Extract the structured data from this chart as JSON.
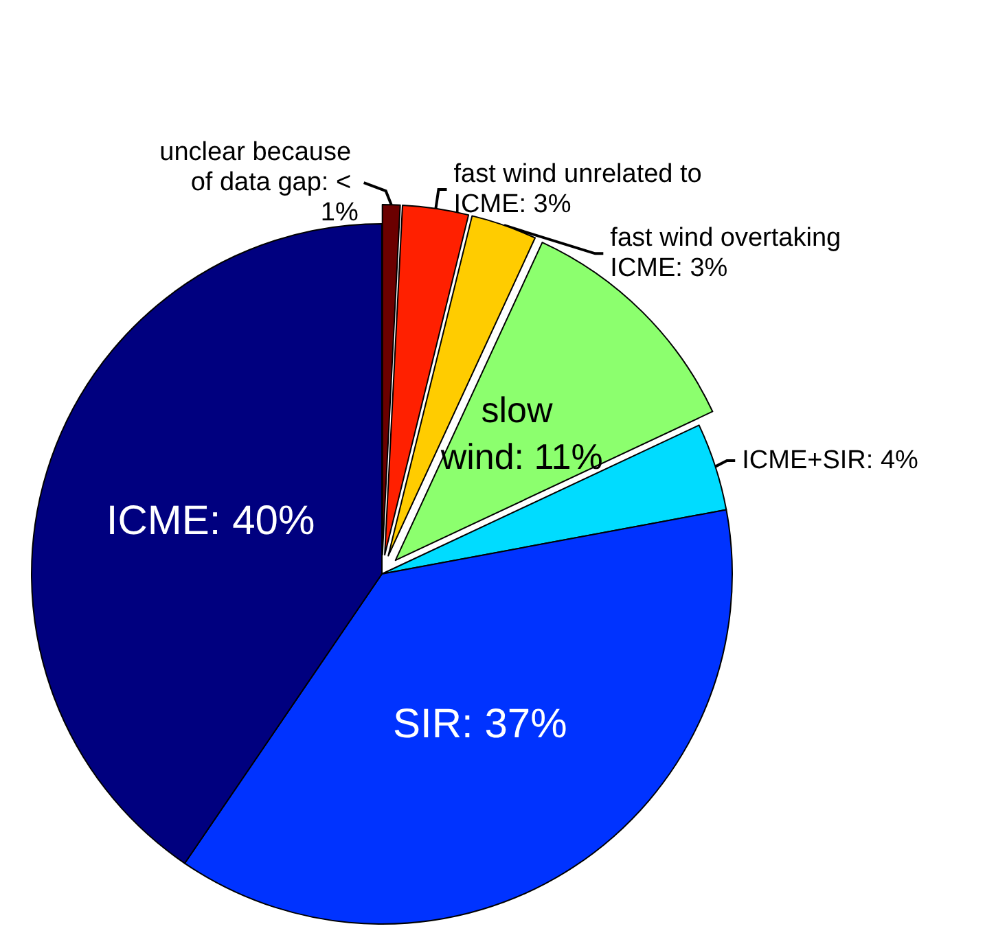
{
  "chart_data": {
    "type": "pie",
    "categories": [
      "unclear because of data gap",
      "fast wind unrelated to ICME",
      "fast wind overtaking ICME",
      "slow wind",
      "ICME+SIR",
      "SIR",
      "ICME"
    ],
    "values": [
      0.8,
      3,
      3,
      11,
      4,
      37,
      40
    ],
    "value_labels": [
      "< 1%",
      "3%",
      "3%",
      "11%",
      "4%",
      "37%",
      "40%"
    ],
    "colors": [
      "#6b0000",
      "#ff2000",
      "#ffcc00",
      "#8cff6e",
      "#00dcff",
      "#0033ff",
      "#00007f"
    ],
    "legend": false
  }
}
